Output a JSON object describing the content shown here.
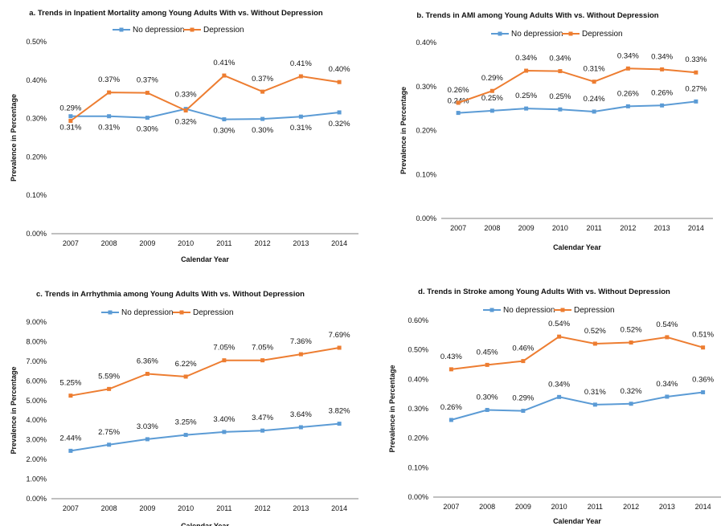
{
  "colors": {
    "no_depression": "#5b9bd5",
    "depression": "#ed7d31",
    "axis": "#808080"
  },
  "chart_data": [
    {
      "id": "a",
      "type": "line",
      "title": "a. Trends in Inpatient Mortality among Young Adults With vs. Without Depression",
      "xlabel": "Calendar Year",
      "ylabel": "Prevalence in Percentage",
      "categories": [
        "2007",
        "2008",
        "2009",
        "2010",
        "2011",
        "2012",
        "2013",
        "2014"
      ],
      "ylim": [
        0,
        0.5
      ],
      "yticks": [
        "0.00%",
        "0.10%",
        "0.20%",
        "0.30%",
        "0.40%",
        "0.50%"
      ],
      "legend_position": "top-center",
      "series": [
        {
          "name": "No depression",
          "values": [
            0.306,
            0.306,
            0.302,
            0.325,
            0.298,
            0.299,
            0.305,
            0.316
          ],
          "labels": [
            "0.31%",
            "0.31%",
            "0.30%",
            "0.33%",
            "0.30%",
            "0.30%",
            "0.31%",
            "0.32%"
          ]
        },
        {
          "name": "Depression",
          "values": [
            0.294,
            0.368,
            0.367,
            0.321,
            0.412,
            0.37,
            0.41,
            0.395
          ],
          "labels": [
            "0.29%",
            "0.37%",
            "0.37%",
            "0.32%",
            "0.41%",
            "0.37%",
            "0.41%",
            "0.40%"
          ]
        }
      ]
    },
    {
      "id": "b",
      "type": "line",
      "title": "b. Trends in AMI among Young Adults With vs. Without Depression",
      "xlabel": "Calendar Year",
      "ylabel": "Prevalence in Percentage",
      "categories": [
        "2007",
        "2008",
        "2009",
        "2010",
        "2011",
        "2012",
        "2013",
        "2014"
      ],
      "ylim": [
        0,
        0.4
      ],
      "yticks": [
        "0.00%",
        "0.10%",
        "0.20%",
        "0.30%",
        "0.40%"
      ],
      "legend_position": "top-center",
      "series": [
        {
          "name": "No depression",
          "values": [
            0.24,
            0.245,
            0.25,
            0.248,
            0.243,
            0.255,
            0.257,
            0.266
          ],
          "labels": [
            "0.24%",
            "0.25%",
            "0.25%",
            "0.25%",
            "0.24%",
            "0.26%",
            "0.26%",
            "0.27%"
          ]
        },
        {
          "name": "Depression",
          "values": [
            0.263,
            0.29,
            0.336,
            0.335,
            0.311,
            0.341,
            0.339,
            0.332
          ],
          "labels": [
            "0.26%",
            "0.29%",
            "0.34%",
            "0.34%",
            "0.31%",
            "0.34%",
            "0.34%",
            "0.33%"
          ]
        }
      ]
    },
    {
      "id": "c",
      "type": "line",
      "title": "c. Trends in Arrhythmia among Young Adults With vs. Without Depression",
      "xlabel": "Calendar Year",
      "ylabel": "Prevalence in Percentage",
      "categories": [
        "2007",
        "2008",
        "2009",
        "2010",
        "2011",
        "2012",
        "2013",
        "2014"
      ],
      "ylim": [
        0,
        9
      ],
      "yticks": [
        "0.00%",
        "1.00%",
        "2.00%",
        "3.00%",
        "4.00%",
        "5.00%",
        "6.00%",
        "7.00%",
        "8.00%",
        "9.00%"
      ],
      "legend_position": "top-center",
      "series": [
        {
          "name": "No depression",
          "values": [
            2.44,
            2.75,
            3.03,
            3.25,
            3.4,
            3.47,
            3.64,
            3.82
          ],
          "labels": [
            "2.44%",
            "2.75%",
            "3.03%",
            "3.25%",
            "3.40%",
            "3.47%",
            "3.64%",
            "3.82%"
          ]
        },
        {
          "name": "Depression",
          "values": [
            5.25,
            5.59,
            6.36,
            6.22,
            7.05,
            7.05,
            7.36,
            7.69
          ],
          "labels": [
            "5.25%",
            "5.59%",
            "6.36%",
            "6.22%",
            "7.05%",
            "7.05%",
            "7.36%",
            "7.69%"
          ]
        }
      ]
    },
    {
      "id": "d",
      "type": "line",
      "title": "d. Trends in Stroke among Young Adults With vs. Without Depression",
      "xlabel": "Calendar Year",
      "ylabel": "Prevalence in Percentage",
      "categories": [
        "2007",
        "2008",
        "2009",
        "2010",
        "2011",
        "2012",
        "2013",
        "2014"
      ],
      "ylim": [
        0,
        0.6
      ],
      "yticks": [
        "0.00%",
        "0.10%",
        "0.20%",
        "0.30%",
        "0.40%",
        "0.50%",
        "0.60%"
      ],
      "legend_position": "top-center",
      "series": [
        {
          "name": "No depression",
          "values": [
            0.262,
            0.296,
            0.293,
            0.34,
            0.314,
            0.317,
            0.341,
            0.356
          ],
          "labels": [
            "0.26%",
            "0.30%",
            "0.29%",
            "0.34%",
            "0.31%",
            "0.32%",
            "0.34%",
            "0.36%"
          ]
        },
        {
          "name": "Depression",
          "values": [
            0.434,
            0.449,
            0.462,
            0.545,
            0.521,
            0.525,
            0.543,
            0.508
          ],
          "labels": [
            "0.43%",
            "0.45%",
            "0.46%",
            "0.54%",
            "0.52%",
            "0.52%",
            "0.54%",
            "0.51%"
          ]
        }
      ]
    }
  ]
}
